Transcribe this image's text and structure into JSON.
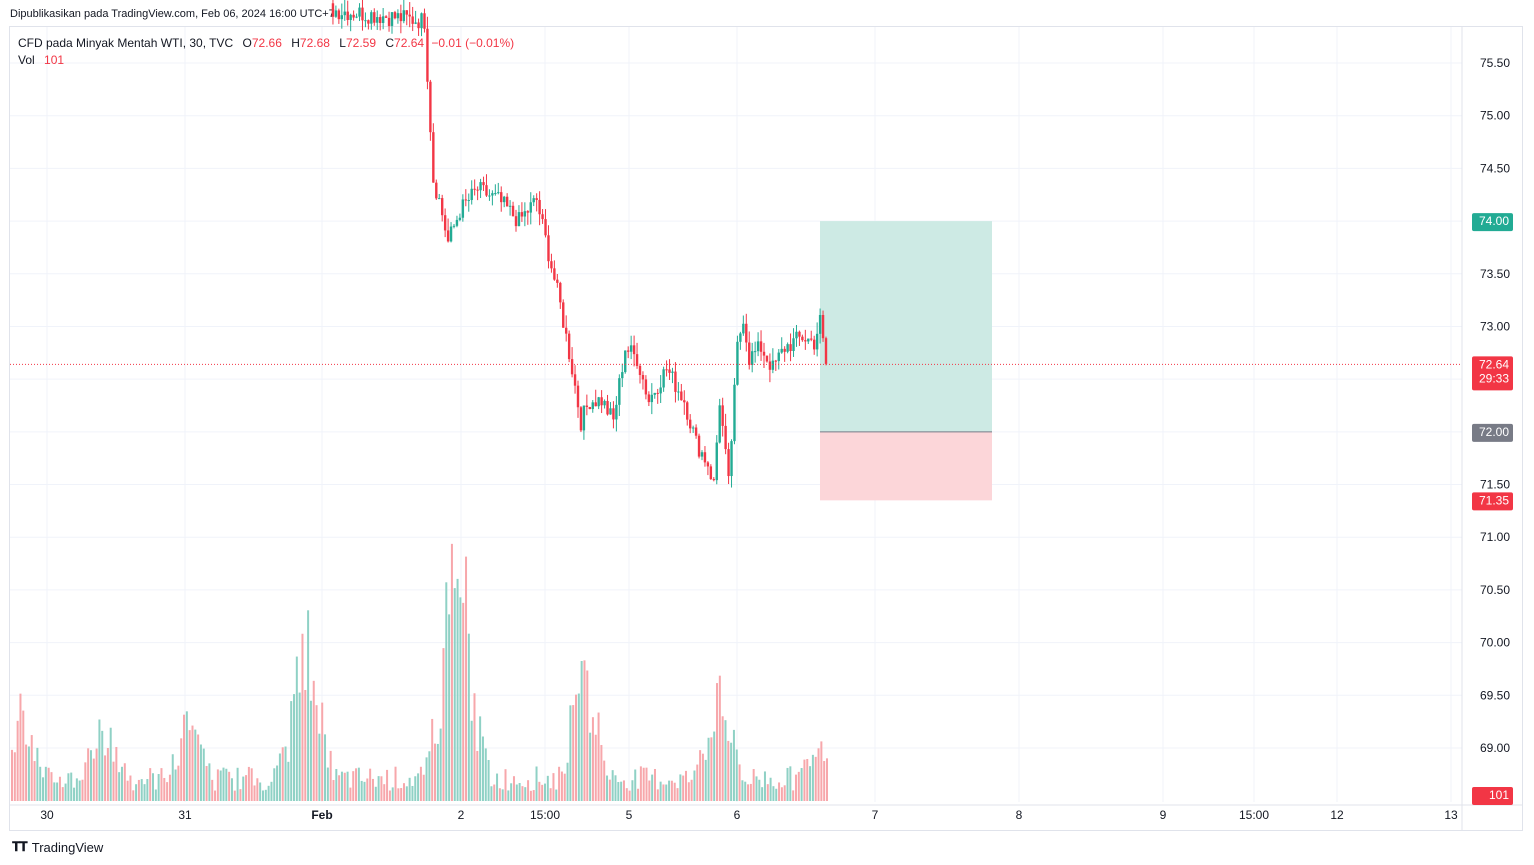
{
  "published": "Dipublikasikan pada TradingView.com, Feb 06, 2024 16:00 UTC+7",
  "brand": "TradingView",
  "legend": {
    "symbol": "CFD pada Minyak Mentah WTI, 30, TVC",
    "o_label": "O",
    "o": "72.66",
    "h_label": "H",
    "h": "72.68",
    "l_label": "L",
    "l": "72.59",
    "c_label": "C",
    "c": "72.64",
    "change": "−0.01 (−0.01%)",
    "vol_label": "Vol",
    "vol": "101"
  },
  "colors": {
    "up": "#22ab94",
    "down": "#f23645",
    "vol_up": "#8fd1c5",
    "vol_down": "#f7a7ab",
    "profit_zone": "#cdeae4",
    "loss_zone": "#fcd6d9",
    "grid": "#f0f3fa",
    "axis_text": "#131722"
  },
  "chart_data": {
    "type": "candlestick",
    "ylim": [
      68.55,
      75.85
    ],
    "y_ticks": [
      "75.50",
      "75.00",
      "74.50",
      "74.00",
      "73.50",
      "73.00",
      "72.50",
      "72.00",
      "71.50",
      "71.00",
      "70.50",
      "70.00",
      "69.50",
      "69.00"
    ],
    "x_ticks": [
      "30",
      "31",
      "Feb",
      "2",
      "15:00",
      "5",
      "6",
      "7",
      "8",
      "9",
      "15:00",
      "12",
      "13"
    ],
    "current_price": {
      "value": 72.64,
      "label": "72.64",
      "countdown": "29:33"
    },
    "position": {
      "target": 74.0,
      "target_label": "74.00",
      "entry": 72.0,
      "entry_label": "72.00",
      "stop": 71.35,
      "stop_label": "71.35"
    },
    "volume_label": "101",
    "key_points": [
      {
        "i": 0,
        "p": 76.3
      },
      {
        "i": 120,
        "p": 76.0
      },
      {
        "i": 150,
        "p": 75.9
      },
      {
        "i": 153,
        "p": 74.4
      },
      {
        "i": 155,
        "p": 74.2
      },
      {
        "i": 158,
        "p": 73.8
      },
      {
        "i": 162,
        "p": 74.1
      },
      {
        "i": 168,
        "p": 74.3
      },
      {
        "i": 175,
        "p": 74.2
      },
      {
        "i": 182,
        "p": 74.0
      },
      {
        "i": 188,
        "p": 74.2
      },
      {
        "i": 192,
        "p": 73.7
      },
      {
        "i": 196,
        "p": 73.2
      },
      {
        "i": 200,
        "p": 72.6
      },
      {
        "i": 203,
        "p": 72.1
      },
      {
        "i": 206,
        "p": 72.3
      },
      {
        "i": 210,
        "p": 72.3
      },
      {
        "i": 214,
        "p": 72.1
      },
      {
        "i": 218,
        "p": 72.8
      },
      {
        "i": 222,
        "p": 72.7
      },
      {
        "i": 226,
        "p": 72.3
      },
      {
        "i": 232,
        "p": 72.6
      },
      {
        "i": 238,
        "p": 72.3
      },
      {
        "i": 242,
        "p": 71.9
      },
      {
        "i": 246,
        "p": 71.7
      },
      {
        "i": 248,
        "p": 71.5
      },
      {
        "i": 250,
        "p": 72.3
      },
      {
        "i": 253,
        "p": 71.5
      },
      {
        "i": 256,
        "p": 72.8
      },
      {
        "i": 258,
        "p": 73.1
      },
      {
        "i": 260,
        "p": 72.7
      },
      {
        "i": 264,
        "p": 72.8
      },
      {
        "i": 268,
        "p": 72.6
      },
      {
        "i": 272,
        "p": 72.8
      },
      {
        "i": 278,
        "p": 72.9
      },
      {
        "i": 282,
        "p": 72.85
      },
      {
        "i": 284,
        "p": 73.05
      },
      {
        "i": 286,
        "p": 72.64
      }
    ]
  }
}
